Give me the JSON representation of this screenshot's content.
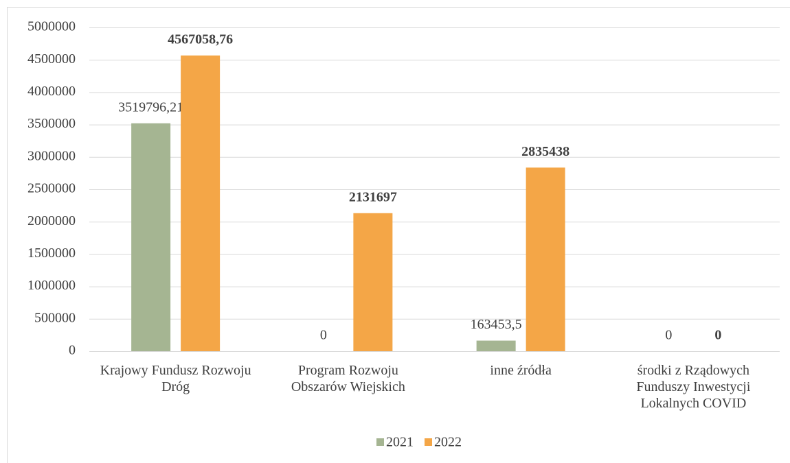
{
  "chart_data": {
    "type": "bar",
    "categories": [
      "Krajowy Fundusz Rozwoju Dróg",
      "Program Rozwoju Obszarów Wiejskich",
      "inne źródła",
      "środki z Rządowych Funduszy Inwestycji Lokalnych COVID"
    ],
    "series": [
      {
        "name": "2021",
        "color": "#a5b592",
        "values": [
          3519796.21,
          0,
          163453.5,
          0
        ],
        "value_labels": [
          "3519796,21",
          "0",
          "163453,5",
          "0"
        ],
        "label_bold": false
      },
      {
        "name": "2022",
        "color": "#f4a647",
        "values": [
          4567058.76,
          2131697,
          2835438,
          0
        ],
        "value_labels": [
          "4567058,76",
          "2131697",
          "2835438",
          "0"
        ],
        "label_bold": true
      }
    ],
    "ylim": [
      0,
      5000000
    ],
    "yticks": [
      0,
      500000,
      1000000,
      1500000,
      2000000,
      2500000,
      3000000,
      3500000,
      4000000,
      4500000,
      5000000
    ],
    "grid": true,
    "legend": "bottom"
  }
}
